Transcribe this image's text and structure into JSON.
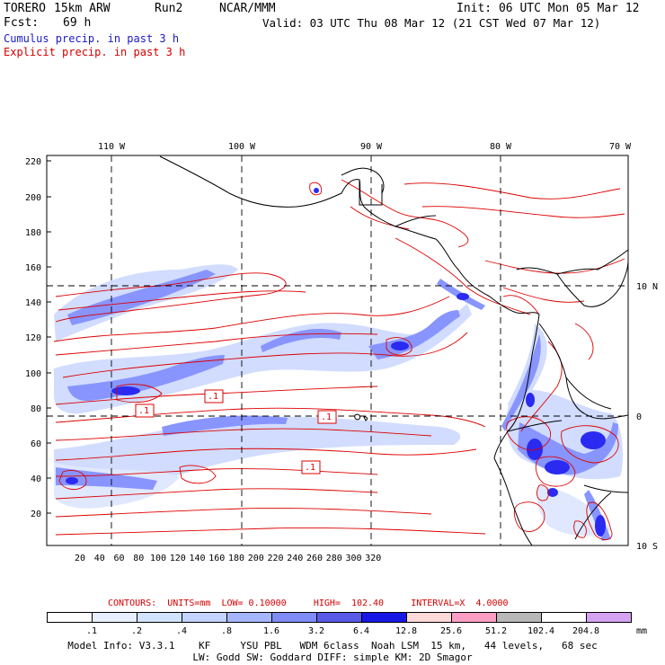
{
  "header": {
    "model": "TORERO",
    "resolution": "15km ARW",
    "run": "Run2",
    "org": "NCAR/MMM",
    "init": "Init: 06 UTC Mon 05 Mar 12",
    "fcst_label": "Fcst:",
    "fcst_value": "69 h",
    "valid": "Valid: 03 UTC Thu 08 Mar 12 (21 CST Wed 07 Mar 12)"
  },
  "legend_lines": {
    "cumulus": "Cumulus precip. in past 3 h",
    "explicit": "Explicit precip. in past 3 h"
  },
  "map": {
    "top_lon_labels": [
      "110 W",
      "100 W",
      "90 W",
      "80 W",
      "70 W"
    ],
    "left_y_labels": [
      "220",
      "200",
      "180",
      "160",
      "140",
      "120",
      "100",
      "80",
      "60",
      "40",
      "20"
    ],
    "bottom_x_labels": [
      "20",
      "40",
      "60",
      "80",
      "100",
      "120",
      "140",
      "160",
      "180",
      "200",
      "220",
      "240",
      "260",
      "280",
      "300",
      "320"
    ],
    "right_lat_labels": [
      "10 N",
      "0",
      "10 S"
    ],
    "contour_tags": [
      ".1",
      ".1",
      ".1",
      ".1"
    ],
    "colors": {
      "contour": "#dd0000",
      "coast": "#000000",
      "precip_light": "#c9d6ff",
      "precip_mid": "#8895ff",
      "precip_heavy": "#2a2af0"
    }
  },
  "contours_info": {
    "label": "CONTOURS:",
    "units": "UNITS=mm",
    "low": "LOW= 0.10000",
    "high": "HIGH=  102.40",
    "interval": "INTERVAL=X  4.0000"
  },
  "colorbar": {
    "colors": [
      "#ffffff",
      "#e8f0ff",
      "#d0e4ff",
      "#c2d4ff",
      "#a5b6ff",
      "#7f8cf5",
      "#5a5ae8",
      "#1818e6",
      "#ffd8d8",
      "#ff9ec4",
      "#b8b8b8",
      "#ffffff",
      "#d6a2f2"
    ],
    "labels": [
      ".1",
      ".2",
      ".4",
      ".8",
      "1.6",
      "3.2",
      "6.4",
      "12.8",
      "25.6",
      "51.2",
      "102.4",
      "204.8"
    ],
    "unit": "mm"
  },
  "footer": {
    "line1": "Model Info: V3.3.1    KF     YSU PBL   WDM 6class  Noah LSM  15 km,   44 levels,   68 sec",
    "line2": "LW: Godd SW: Goddard DIFF: simple KM: 2D Smagor"
  }
}
